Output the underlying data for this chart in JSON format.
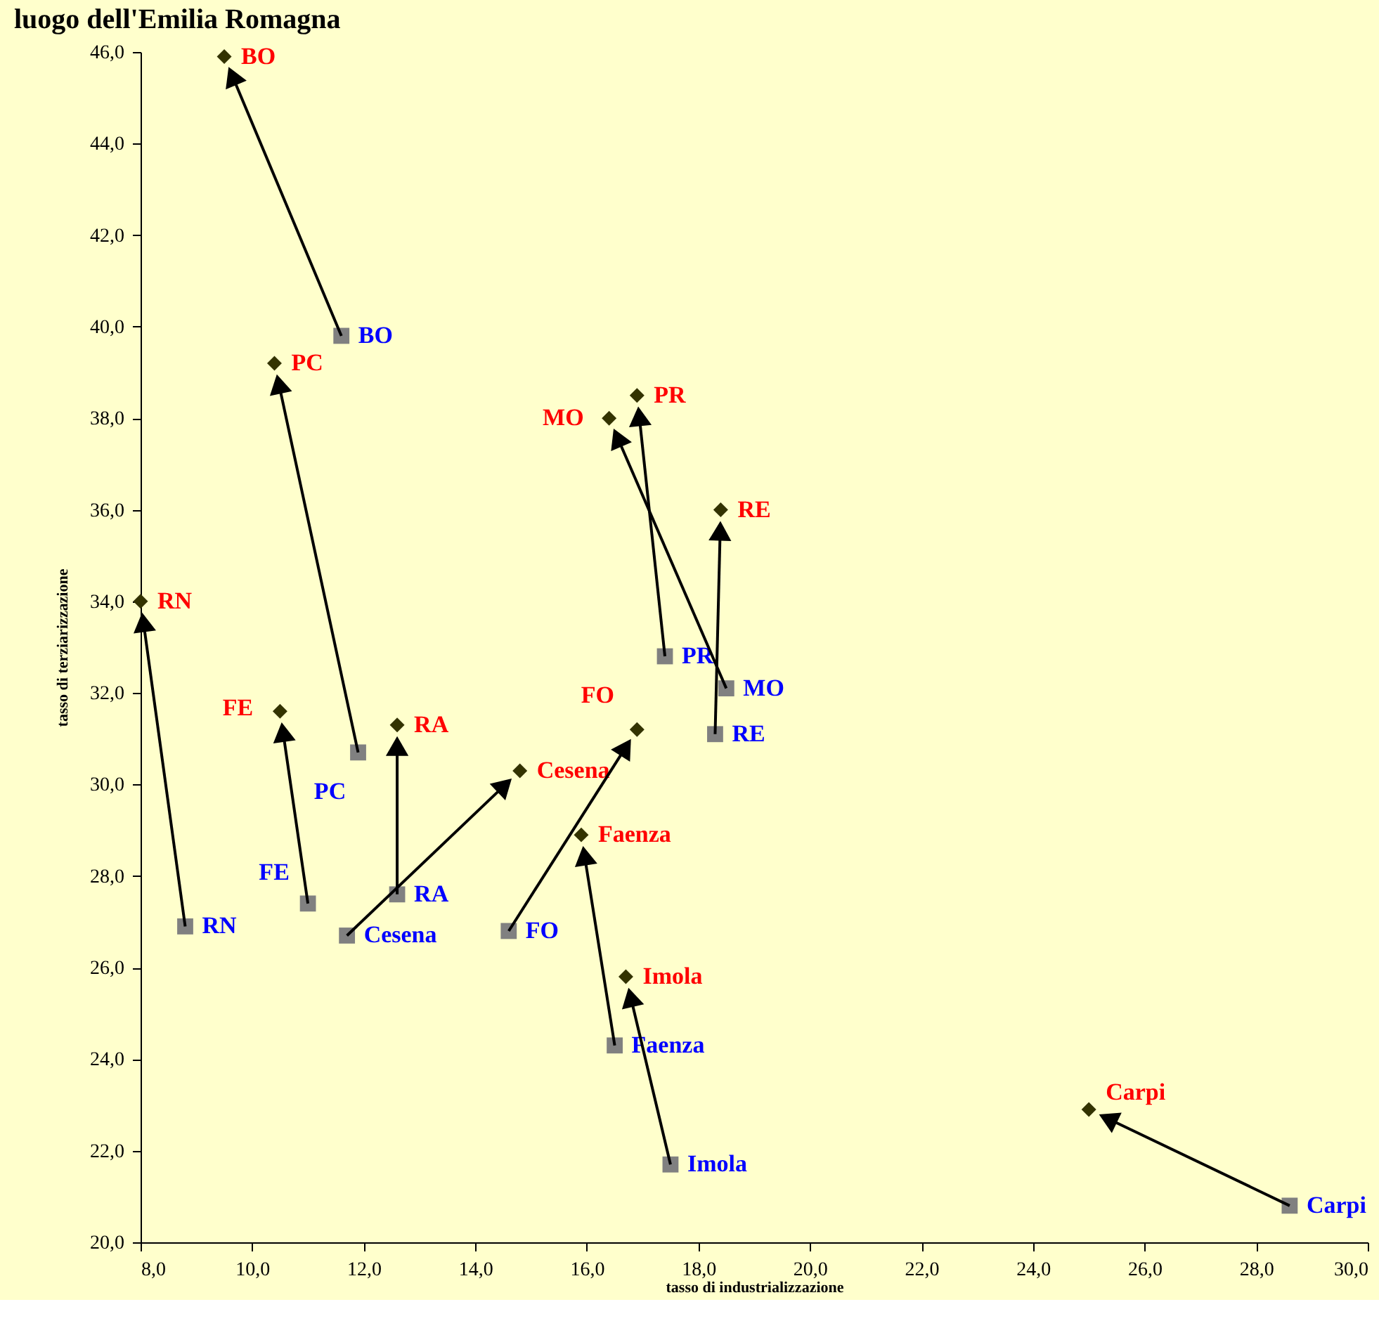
{
  "chart_data": {
    "type": "scatter",
    "title": "luogo dell'Emilia Romagna",
    "xlabel": "tasso di industrializzazione",
    "ylabel": "tasso di terziarizzazione",
    "series": [
      {
        "color": "#808080",
        "marker": "square",
        "value_labels": [
          "BO",
          "PC",
          "RN",
          "FE",
          "RA",
          "Cesena",
          "FO",
          "MO",
          "PR",
          "RE",
          "Faenza",
          "Imola",
          "Carpi"
        ],
        "x": [
          11.6,
          11.9,
          8.8,
          11.0,
          12.6,
          11.7,
          14.6,
          18.5,
          17.4,
          18.3,
          16.5,
          17.5,
          28.6
        ],
        "values": [
          39.8,
          30.7,
          26.9,
          27.4,
          27.6,
          26.7,
          26.8,
          32.1,
          32.8,
          31.1,
          24.3,
          21.7,
          20.8
        ]
      },
      {
        "color": "#333300",
        "marker": "diamond",
        "value_labels": [
          "BO",
          "PC",
          "RN",
          "FE",
          "RA",
          "Cesena",
          "FO",
          "MO",
          "PR",
          "RE",
          "Faenza",
          "Imola",
          "Carpi"
        ],
        "x": [
          9.5,
          10.4,
          8.0,
          10.5,
          12.6,
          14.8,
          16.9,
          16.4,
          16.9,
          18.4,
          15.9,
          16.7,
          25.0
        ],
        "values": [
          45.9,
          39.2,
          34.0,
          31.6,
          31.3,
          30.3,
          31.2,
          38.0,
          38.5,
          36.0,
          28.9,
          25.8,
          22.9
        ]
      }
    ],
    "xlim": [
      8,
      30
    ],
    "ylim": [
      20,
      46
    ],
    "xticks": [
      {
        "value": 8,
        "label": "8,0"
      },
      {
        "value": 10,
        "label": "10,0"
      },
      {
        "value": 12,
        "label": "12,0"
      },
      {
        "value": 14,
        "label": "14,0"
      },
      {
        "value": 16,
        "label": "16,0"
      },
      {
        "value": 18,
        "label": "18,0"
      },
      {
        "value": 20,
        "label": "20,0"
      },
      {
        "value": 22,
        "label": "22,0"
      },
      {
        "value": 24,
        "label": "24,0"
      },
      {
        "value": 26,
        "label": "26,0"
      },
      {
        "value": 28,
        "label": "28,0"
      },
      {
        "value": 30,
        "label": "30,0"
      }
    ],
    "yticks": [
      {
        "value": 20,
        "label": "20,0"
      },
      {
        "value": 22,
        "label": "22,0"
      },
      {
        "value": 24,
        "label": "24,0"
      },
      {
        "value": 26,
        "label": "26,0"
      },
      {
        "value": 28,
        "label": "28,0"
      },
      {
        "value": 30,
        "label": "30,0"
      },
      {
        "value": 32,
        "label": "32,0"
      },
      {
        "value": 34,
        "label": "34,0"
      },
      {
        "value": 36,
        "label": "36,0"
      },
      {
        "value": 38,
        "label": "38,0"
      },
      {
        "value": 40,
        "label": "40,0"
      },
      {
        "value": 42,
        "label": "42,0"
      },
      {
        "value": 44,
        "label": "44,0"
      },
      {
        "value": 46,
        "label": "46,0"
      }
    ],
    "grid": false
  }
}
